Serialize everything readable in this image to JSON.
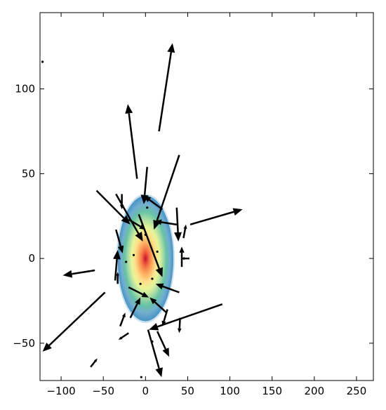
{
  "chart_data": {
    "type": "scatter",
    "subtype": "quiver-over-density",
    "title": "",
    "xlabel": "",
    "ylabel": "",
    "xlim": [
      -125,
      270
    ],
    "ylim": [
      -72,
      145
    ],
    "xticks": [
      -100,
      -50,
      0,
      50,
      100,
      150,
      200,
      250
    ],
    "yticks": [
      -50,
      0,
      50,
      100
    ],
    "xtick_labels": [
      "−100",
      "−50",
      "0",
      "50",
      "100",
      "150",
      "200",
      "250"
    ],
    "ytick_labels": [
      "−50",
      "0",
      "50",
      "100"
    ],
    "grid": false,
    "legend": "none",
    "density": {
      "center": [
        0,
        0
      ],
      "semi_axes": [
        33,
        37
      ],
      "colormap": "spectral",
      "colors": [
        "#c8102e",
        "#f46d43",
        "#fdae61",
        "#fee08b",
        "#e6f598",
        "#abdda4",
        "#66c2a5",
        "#74add1",
        "#3288bd"
      ]
    },
    "arrows": [
      {
        "x": 16,
        "y": 75,
        "dx": 16,
        "dy": 52
      },
      {
        "x": -10,
        "y": 47,
        "dx": -11,
        "dy": 44
      },
      {
        "x": 40,
        "y": 61,
        "dx": -30,
        "dy": -44
      },
      {
        "x": -58,
        "y": 40,
        "dx": 40,
        "dy": -20
      },
      {
        "x": -35,
        "y": 38,
        "dx": 32,
        "dy": -28
      },
      {
        "x": 2,
        "y": 54,
        "dx": -4,
        "dy": -22
      },
      {
        "x": 53,
        "y": 20,
        "dx": 62,
        "dy": 9
      },
      {
        "x": -60,
        "y": -7,
        "dx": -38,
        "dy": -3
      },
      {
        "x": -48,
        "y": -20,
        "dx": -74,
        "dy": -35
      },
      {
        "x": 91,
        "y": -27,
        "dx": -87,
        "dy": -15
      },
      {
        "x": 3,
        "y": -42,
        "dx": 16,
        "dy": -28
      },
      {
        "x": -8,
        "y": 26,
        "dx": 28,
        "dy": -37
      },
      {
        "x": 20,
        "y": 29,
        "dx": -22,
        "dy": 8
      },
      {
        "x": -20,
        "y": 23,
        "dx": 20,
        "dy": -6
      },
      {
        "x": 37,
        "y": 20,
        "dx": -26,
        "dy": 2
      },
      {
        "x": 37,
        "y": 30,
        "dx": 2,
        "dy": -20
      },
      {
        "x": -35,
        "y": 17,
        "dx": 8,
        "dy": -14
      },
      {
        "x": -36,
        "y": -13,
        "dx": 3,
        "dy": 18
      },
      {
        "x": -20,
        "y": -17,
        "dx": 24,
        "dy": -6
      },
      {
        "x": 40,
        "y": -20,
        "dx": -28,
        "dy": 5
      },
      {
        "x": 25,
        "y": -32,
        "dx": -20,
        "dy": 9
      },
      {
        "x": -18,
        "y": -35,
        "dx": 12,
        "dy": 12
      },
      {
        "x": -30,
        "y": -40,
        "dx": 6,
        "dy": 8
      },
      {
        "x": 14,
        "y": -43,
        "dx": 14,
        "dy": -15
      },
      {
        "x": -20,
        "y": -44,
        "dx": -12,
        "dy": -4
      },
      {
        "x": -65,
        "y": -64,
        "dx": 8,
        "dy": 5
      },
      {
        "x": 26,
        "y": -30,
        "dx": -6,
        "dy": -10
      },
      {
        "x": 43,
        "y": -5,
        "dx": 0,
        "dy": 12
      },
      {
        "x": 45,
        "y": 12,
        "dx": 3,
        "dy": 8
      },
      {
        "x": 41,
        "y": -35,
        "dx": -1,
        "dy": -9
      },
      {
        "x": -33,
        "y": -15,
        "dx": 0,
        "dy": 7
      },
      {
        "x": -28,
        "y": 38,
        "dx": 0,
        "dy": -9
      },
      {
        "x": 52,
        "y": 0,
        "dx": -10,
        "dy": 0
      }
    ],
    "small_markers": [
      {
        "x": -122,
        "y": 116
      },
      {
        "x": 8,
        "y": -49
      },
      {
        "x": -5,
        "y": -70
      },
      {
        "x": -23,
        "y": 22
      },
      {
        "x": 2,
        "y": 30
      },
      {
        "x": -14,
        "y": 2
      },
      {
        "x": 14,
        "y": 4
      },
      {
        "x": -6,
        "y": -15
      },
      {
        "x": 8,
        "y": -12
      },
      {
        "x": 0,
        "y": 14
      },
      {
        "x": -23,
        "y": -2
      }
    ]
  }
}
